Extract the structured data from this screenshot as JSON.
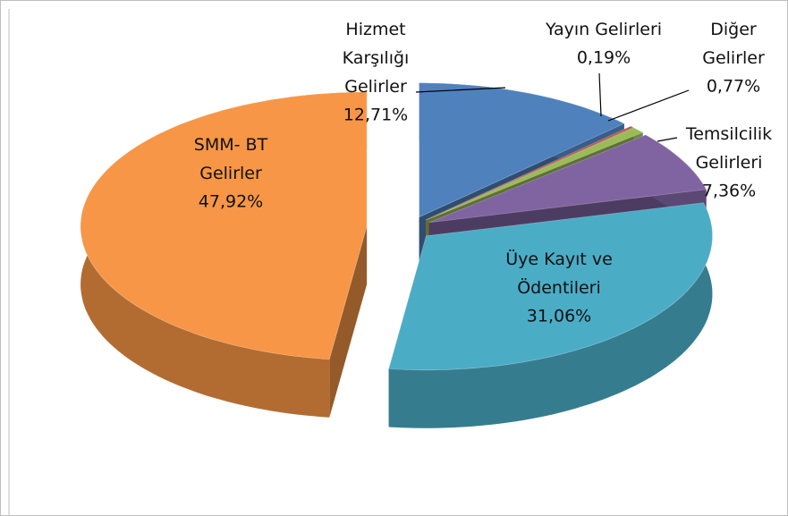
{
  "chart_data": {
    "type": "pie3d",
    "categories": [
      "Hizmet\nKarşılığı\nGelirler",
      "Yayın Gelirleri",
      "Diğer\nGelirler",
      "Temsilcilik\nGelirleri",
      "Üye Kayıt ve\nÖdentileri",
      "SMM- BT\nGelirler"
    ],
    "values": [
      12.71,
      0.19,
      0.77,
      7.36,
      31.06,
      47.92
    ],
    "value_labels": [
      "12,71%",
      "0,19%",
      "0,77%",
      "7,36%",
      "31,06%",
      "47,92%"
    ],
    "colors": [
      "#4f81bd",
      "#c0504d",
      "#9bbb59",
      "#8064a2",
      "#4bacc6",
      "#f79646"
    ]
  }
}
